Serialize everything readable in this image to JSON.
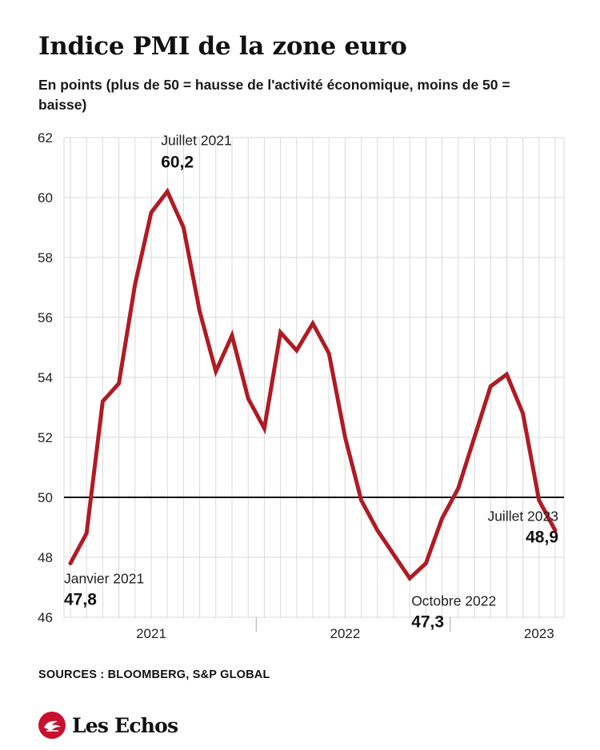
{
  "title": "Indice PMI de la zone euro",
  "subtitle": "En points (plus de 50 = hausse de l'activité économique, moins de 50 = baisse)",
  "sources": "SOURCES : BLOOMBERG, S&P GLOBAL",
  "logo": {
    "text": "Les Echos",
    "color": "#c8102e"
  },
  "chart_data": {
    "type": "line",
    "title": "Indice PMI de la zone euro",
    "ylim": [
      46,
      62
    ],
    "yticks": [
      46,
      48,
      50,
      52,
      54,
      56,
      58,
      60,
      62
    ],
    "xtick_labels": [
      {
        "label": "2021",
        "index": 5
      },
      {
        "label": "2022",
        "index": 17
      },
      {
        "label": "2023",
        "index": 29
      }
    ],
    "year_separators": [
      11.5,
      23.5
    ],
    "grid": true,
    "reference_line": 50,
    "line_color": "#b01b24",
    "series": [
      {
        "values": [
          47.8,
          48.8,
          53.2,
          53.8,
          57.1,
          59.5,
          60.2,
          59.0,
          56.2,
          54.2,
          55.4,
          53.3,
          52.3,
          55.5,
          54.9,
          55.8,
          54.8,
          52.0,
          49.9,
          48.9,
          48.1,
          47.3,
          47.8,
          49.3,
          50.3,
          52.0,
          53.7,
          54.1,
          52.8,
          49.9,
          48.9
        ]
      }
    ],
    "annotations": [
      {
        "index": 6,
        "label": "Juillet 2021",
        "value": "60,2"
      },
      {
        "index": 0,
        "label": "Janvier 2021",
        "value": "47,8"
      },
      {
        "index": 21,
        "label": "Octobre 2022",
        "value": "47,3"
      },
      {
        "index": 30,
        "label": "Juillet 2023",
        "value": "48,9"
      }
    ]
  }
}
